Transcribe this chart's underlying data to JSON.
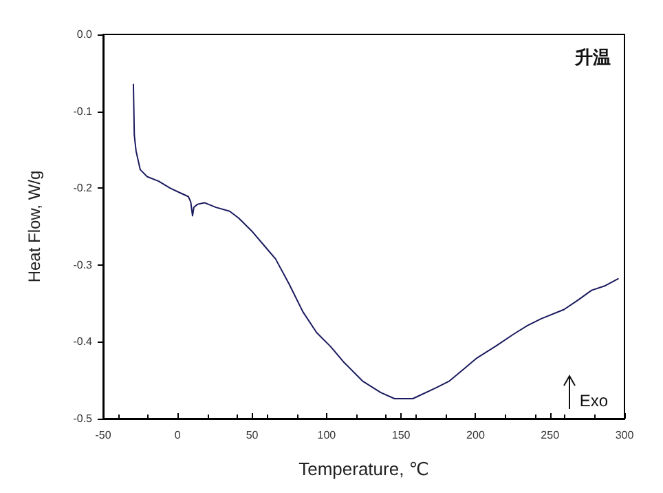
{
  "chart_data": {
    "type": "line",
    "xlabel": "Temperature, ℃",
    "ylabel": "Heat Flow, W/g",
    "annotations": [
      "升温",
      "Exo"
    ],
    "xlim": [
      -50,
      300
    ],
    "xticks": [
      -50,
      0,
      50,
      100,
      150,
      200,
      250,
      300
    ],
    "ylim": [
      -0.5,
      0
    ],
    "yticks": [
      -0.5,
      -0.4,
      -0.3,
      -0.2,
      -0.1,
      {
        "value": 0,
        "label": "0.0"
      }
    ],
    "grid": false,
    "marker": "none",
    "line_style": "solid",
    "series": [
      {
        "color": "#1a1a5e",
        "x": [
          -29.7,
          -29.1,
          -27.9,
          -25.1,
          -20.5,
          -12.8,
          -5.1,
          2.6,
          7.2,
          8.8,
          10.0,
          10.9,
          13.4,
          18.0,
          25.7,
          34.9,
          41.0,
          50.3,
          59.5,
          65.7,
          74.9,
          84.1,
          93.3,
          102.6,
          111.8,
          124.1,
          136.4,
          145.6,
          157.9,
          173.3,
          182.5,
          191.8,
          201.0,
          213.3,
          225.6,
          234.8,
          244.1,
          259.4,
          268.6,
          277.9,
          287.1,
          295.7
        ],
        "values": [
          -0.065,
          -0.131,
          -0.152,
          -0.176,
          -0.185,
          -0.191,
          -0.2,
          -0.207,
          -0.211,
          -0.218,
          -0.236,
          -0.225,
          -0.221,
          -0.219,
          -0.225,
          -0.23,
          -0.239,
          -0.257,
          -0.278,
          -0.292,
          -0.325,
          -0.361,
          -0.388,
          -0.406,
          -0.427,
          -0.451,
          -0.466,
          -0.474,
          -0.474,
          -0.46,
          -0.451,
          -0.436,
          -0.421,
          -0.406,
          -0.39,
          -0.379,
          -0.37,
          -0.358,
          -0.346,
          -0.333,
          -0.327,
          -0.318
        ]
      }
    ]
  }
}
